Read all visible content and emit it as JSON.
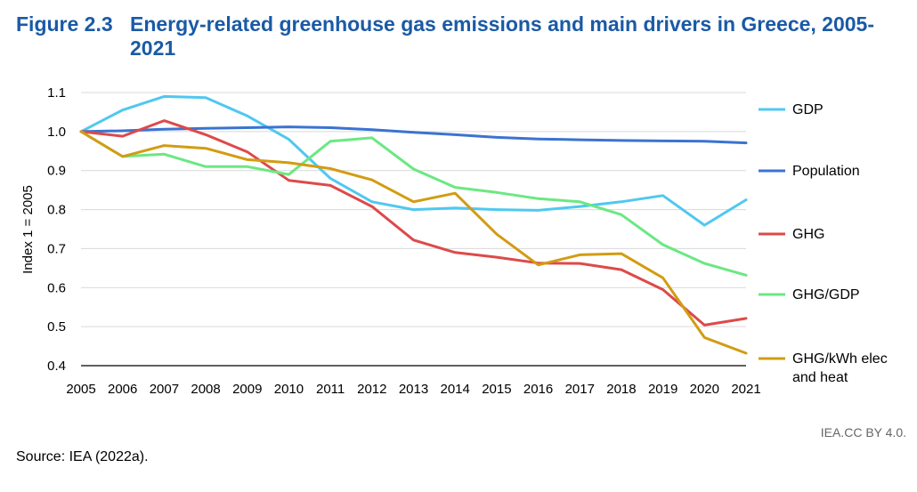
{
  "title_num": "Figure 2.3",
  "title_text": "Energy-related greenhouse gas emissions and main drivers in Greece, 2005-2021",
  "credit": "IEA.CC BY 4.0.",
  "source": "Source: IEA (2022a).",
  "chart_data": {
    "type": "line",
    "ylabel": "Index 1 = 2005",
    "ylim": [
      0.4,
      1.1
    ],
    "yticks": [
      "0.4",
      "0.5",
      "0.6",
      "0.7",
      "0.8",
      "0.9",
      "1.0",
      "1.1"
    ],
    "x": [
      "2005",
      "2006",
      "2007",
      "2008",
      "2009",
      "2010",
      "2011",
      "2012",
      "2013",
      "2014",
      "2015",
      "2016",
      "2017",
      "2018",
      "2019",
      "2020",
      "2021"
    ],
    "grid": true,
    "legend": "right",
    "series": [
      {
        "name": "GDP",
        "color": "#4fc8f0",
        "values": [
          1.0,
          1.055,
          1.09,
          1.087,
          1.04,
          0.98,
          0.88,
          0.82,
          0.8,
          0.804,
          0.8,
          0.798,
          0.808,
          0.82,
          0.836,
          0.76,
          0.825
        ]
      },
      {
        "name": "Population",
        "color": "#3b73d1",
        "values": [
          1.0,
          1.002,
          1.006,
          1.008,
          1.01,
          1.012,
          1.01,
          1.005,
          0.998,
          0.992,
          0.985,
          0.981,
          0.979,
          0.977,
          0.976,
          0.975,
          0.971
        ]
      },
      {
        "name": "GHG",
        "color": "#dd4a4a",
        "values": [
          1.0,
          0.988,
          1.028,
          0.992,
          0.948,
          0.875,
          0.862,
          0.808,
          0.722,
          0.69,
          0.678,
          0.663,
          0.662,
          0.646,
          0.595,
          0.504,
          0.521
        ]
      },
      {
        "name": "GHG/GDP",
        "color": "#6ae882",
        "values": [
          1.0,
          0.936,
          0.942,
          0.91,
          0.91,
          0.89,
          0.975,
          0.984,
          0.904,
          0.857,
          0.844,
          0.828,
          0.82,
          0.787,
          0.71,
          0.662,
          0.632
        ]
      },
      {
        "name": "GHG/kWh elec and heat",
        "legend_lines": [
          "GHG/kWh elec",
          "and heat"
        ],
        "color": "#d29c12",
        "values": [
          1.0,
          0.936,
          0.964,
          0.957,
          0.928,
          0.92,
          0.905,
          0.876,
          0.82,
          0.842,
          0.737,
          0.658,
          0.684,
          0.687,
          0.625,
          0.472,
          0.432
        ]
      }
    ]
  }
}
